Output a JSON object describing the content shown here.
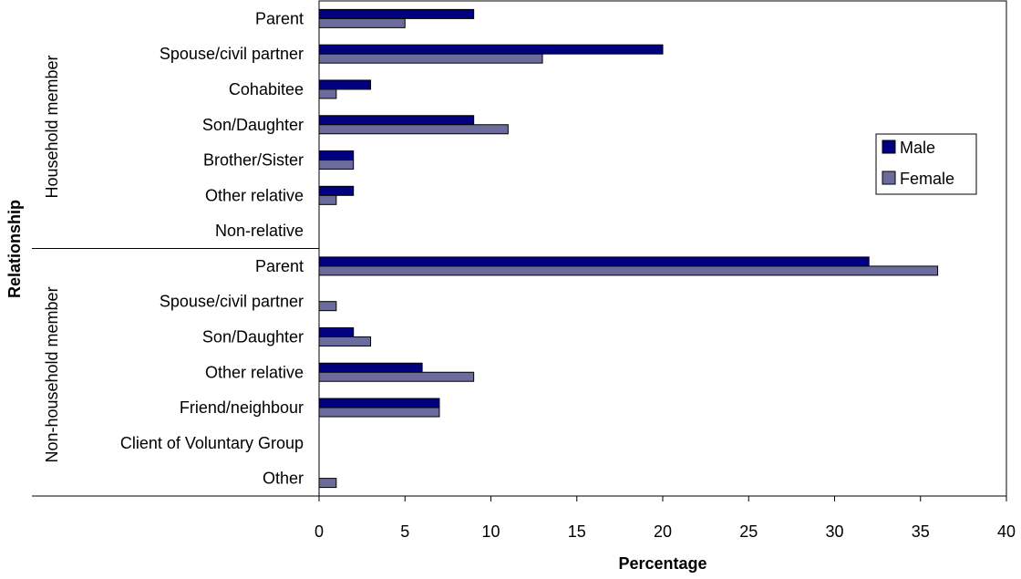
{
  "chart_data": {
    "type": "bar",
    "orientation": "horizontal",
    "title": "",
    "xlabel": "Percentage",
    "ylabel": "Relationship",
    "xlim": [
      0,
      40
    ],
    "xticks": [
      0,
      5,
      10,
      15,
      20,
      25,
      30,
      35,
      40
    ],
    "grid": false,
    "legend_position": "right",
    "groups": [
      {
        "name": "Household member",
        "categories": [
          "Parent",
          "Spouse/civil partner",
          "Cohabitee",
          "Son/Daughter",
          "Brother/Sister",
          "Other relative",
          "Non-relative"
        ]
      },
      {
        "name": "Non-household member",
        "categories": [
          "Parent",
          "Spouse/civil partner",
          "Son/Daughter",
          "Other relative",
          "Friend/neighbour",
          "Client of Voluntary Group",
          "Other"
        ]
      }
    ],
    "series": [
      {
        "name": "Male",
        "color": "#000080",
        "values": [
          9,
          20,
          3,
          9,
          2,
          2,
          0,
          32,
          0,
          2,
          6,
          7,
          0,
          0
        ]
      },
      {
        "name": "Female",
        "color": "#6B6B9E",
        "values": [
          5,
          13,
          1,
          11,
          2,
          1,
          0,
          36,
          1,
          3,
          9,
          7,
          0,
          1
        ]
      }
    ]
  }
}
